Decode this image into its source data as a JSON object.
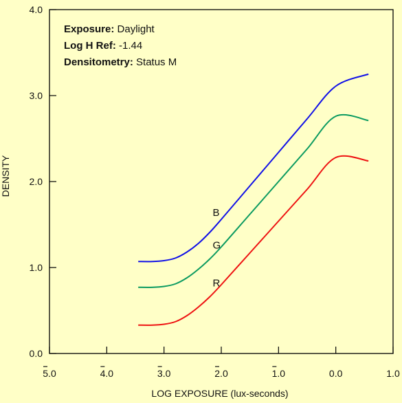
{
  "chart_data": {
    "type": "line",
    "xlabel": "LOG EXPOSURE (lux-seconds)",
    "ylabel": "DENSITY",
    "xlim": [
      -5.0,
      1.0
    ],
    "ylim": [
      0.0,
      4.0
    ],
    "x_ticks": [
      {
        "value": -5.0,
        "label": "5.0",
        "bar": true
      },
      {
        "value": -4.0,
        "label": "4.0",
        "bar": true
      },
      {
        "value": -3.0,
        "label": "3.0",
        "bar": true
      },
      {
        "value": -2.0,
        "label": "2.0",
        "bar": true
      },
      {
        "value": -1.0,
        "label": "1.0",
        "bar": true
      },
      {
        "value": 0.0,
        "label": "0.0",
        "bar": false
      },
      {
        "value": 1.0,
        "label": "1.0",
        "bar": false
      }
    ],
    "y_ticks": [
      {
        "value": 0.0,
        "label": "0.0"
      },
      {
        "value": 1.0,
        "label": "1.0"
      },
      {
        "value": 2.0,
        "label": "2.0"
      },
      {
        "value": 3.0,
        "label": "3.0"
      },
      {
        "value": 4.0,
        "label": "4.0"
      }
    ],
    "info": [
      {
        "key": "Exposure:",
        "value": "Daylight"
      },
      {
        "key": "Log H Ref:",
        "value": "-1.44"
      },
      {
        "key": "Densitometry:",
        "value": "Status M"
      }
    ],
    "series": [
      {
        "name": "B",
        "color": "#1010e8",
        "label_at": [
          -2.15,
          1.6
        ],
        "x": [
          -3.45,
          -3.2,
          -3.0,
          -2.8,
          -2.6,
          -2.4,
          -2.2,
          -2.0,
          -1.5,
          -1.0,
          -0.5,
          0.0,
          0.57
        ],
        "y": [
          1.07,
          1.07,
          1.08,
          1.11,
          1.18,
          1.28,
          1.41,
          1.56,
          1.95,
          2.34,
          2.73,
          3.11,
          3.25
        ]
      },
      {
        "name": "G",
        "color": "#0a9a60",
        "label_at": [
          -2.15,
          1.22
        ],
        "x": [
          -3.45,
          -3.2,
          -3.0,
          -2.8,
          -2.6,
          -2.4,
          -2.2,
          -2.0,
          -1.5,
          -1.0,
          -0.5,
          0.0,
          0.57
        ],
        "y": [
          0.77,
          0.77,
          0.78,
          0.81,
          0.88,
          0.98,
          1.1,
          1.24,
          1.62,
          2.0,
          2.38,
          2.76,
          2.71
        ]
      },
      {
        "name": "R",
        "color": "#ee1111",
        "label_at": [
          -2.15,
          0.78
        ],
        "x": [
          -3.45,
          -3.2,
          -3.0,
          -2.8,
          -2.6,
          -2.4,
          -2.2,
          -2.0,
          -1.5,
          -1.0,
          -0.5,
          0.0,
          0.57
        ],
        "y": [
          0.33,
          0.33,
          0.34,
          0.37,
          0.44,
          0.54,
          0.66,
          0.8,
          1.17,
          1.54,
          1.91,
          2.28,
          2.24
        ]
      }
    ],
    "colors": {
      "background": "#ffffc7",
      "axis": "#000000",
      "text": "#111111"
    }
  }
}
